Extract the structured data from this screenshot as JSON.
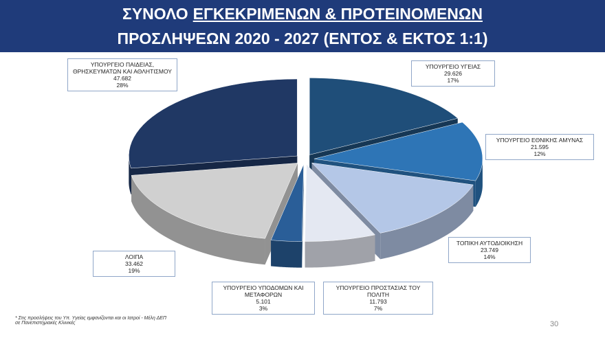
{
  "slide": {
    "title": [
      [
        "ΣΥΝΟΛΟ",
        "ΕΓΚΕΚΡΙΜΕΝΩΝ & ΠΡΟΤΕΙΝΟΜΕΝΩΝ"
      ],
      [
        "ΠΡΟΣΛΗΨΕΩΝ 2020 - 2027 (ΕΝΤΟΣ & ΕΚΤΟΣ 1:1)"
      ]
    ],
    "footnote": "* Στις προσλήψεις του Υπ. Υγείας εμφανίζονται και οι Ιατροί - Μέλη ΔΕΠ σε Πανεπιστημιακές Κλινικές",
    "page_number": 30
  },
  "chart_data": {
    "type": "pie",
    "categories": [
      "ΥΠΟΥΡΓΕΙΟ ΥΓΕΙΑΣ",
      "ΥΠΟΥΡΓΕΙΟ ΕΘΝΙΚΗΣ ΑΜΥΝΑΣ",
      "ΤΟΠΙΚΗ ΑΥΤΟΔΙΟΙΚΗΣΗ",
      "ΥΠΟΥΡΓΕΙΟ ΠΡΟΣΤΑΣΙΑΣ ΤΟΥ ΠΟΛΙΤΗ",
      "ΥΠΟΥΡΓΕΙΟ ΥΠΟΔΟΜΩΝ ΚΑΙ ΜΕΤΑΦΟΡΩΝ",
      "ΛΟΙΠΑ",
      "ΥΠΟΥΡΓΕΙΟ ΠΑΙΔΕΙΑΣ, ΘΡΗΣΚΕΥΜΑΤΩΝ ΚΑΙ ΑΘΛΗΤΙΣΜΟΥ"
    ],
    "values": [
      29626,
      21595,
      23749,
      11793,
      5101,
      33462,
      47682
    ],
    "value_labels": [
      "29.626",
      "21.595",
      "23.749",
      "11.793",
      "5.101",
      "33.462",
      "47.682"
    ],
    "percentages": [
      17,
      12,
      14,
      7,
      3,
      19,
      28
    ],
    "percentage_labels": [
      "17%",
      "12%",
      "14%",
      "7%",
      "3%",
      "19%",
      "28%"
    ],
    "colors": [
      "#1f4e79",
      "#2e75b6",
      "#b4c7e7",
      "#e4e8f2",
      "#2a5e98",
      "#d0d0d0",
      "#203864"
    ]
  }
}
